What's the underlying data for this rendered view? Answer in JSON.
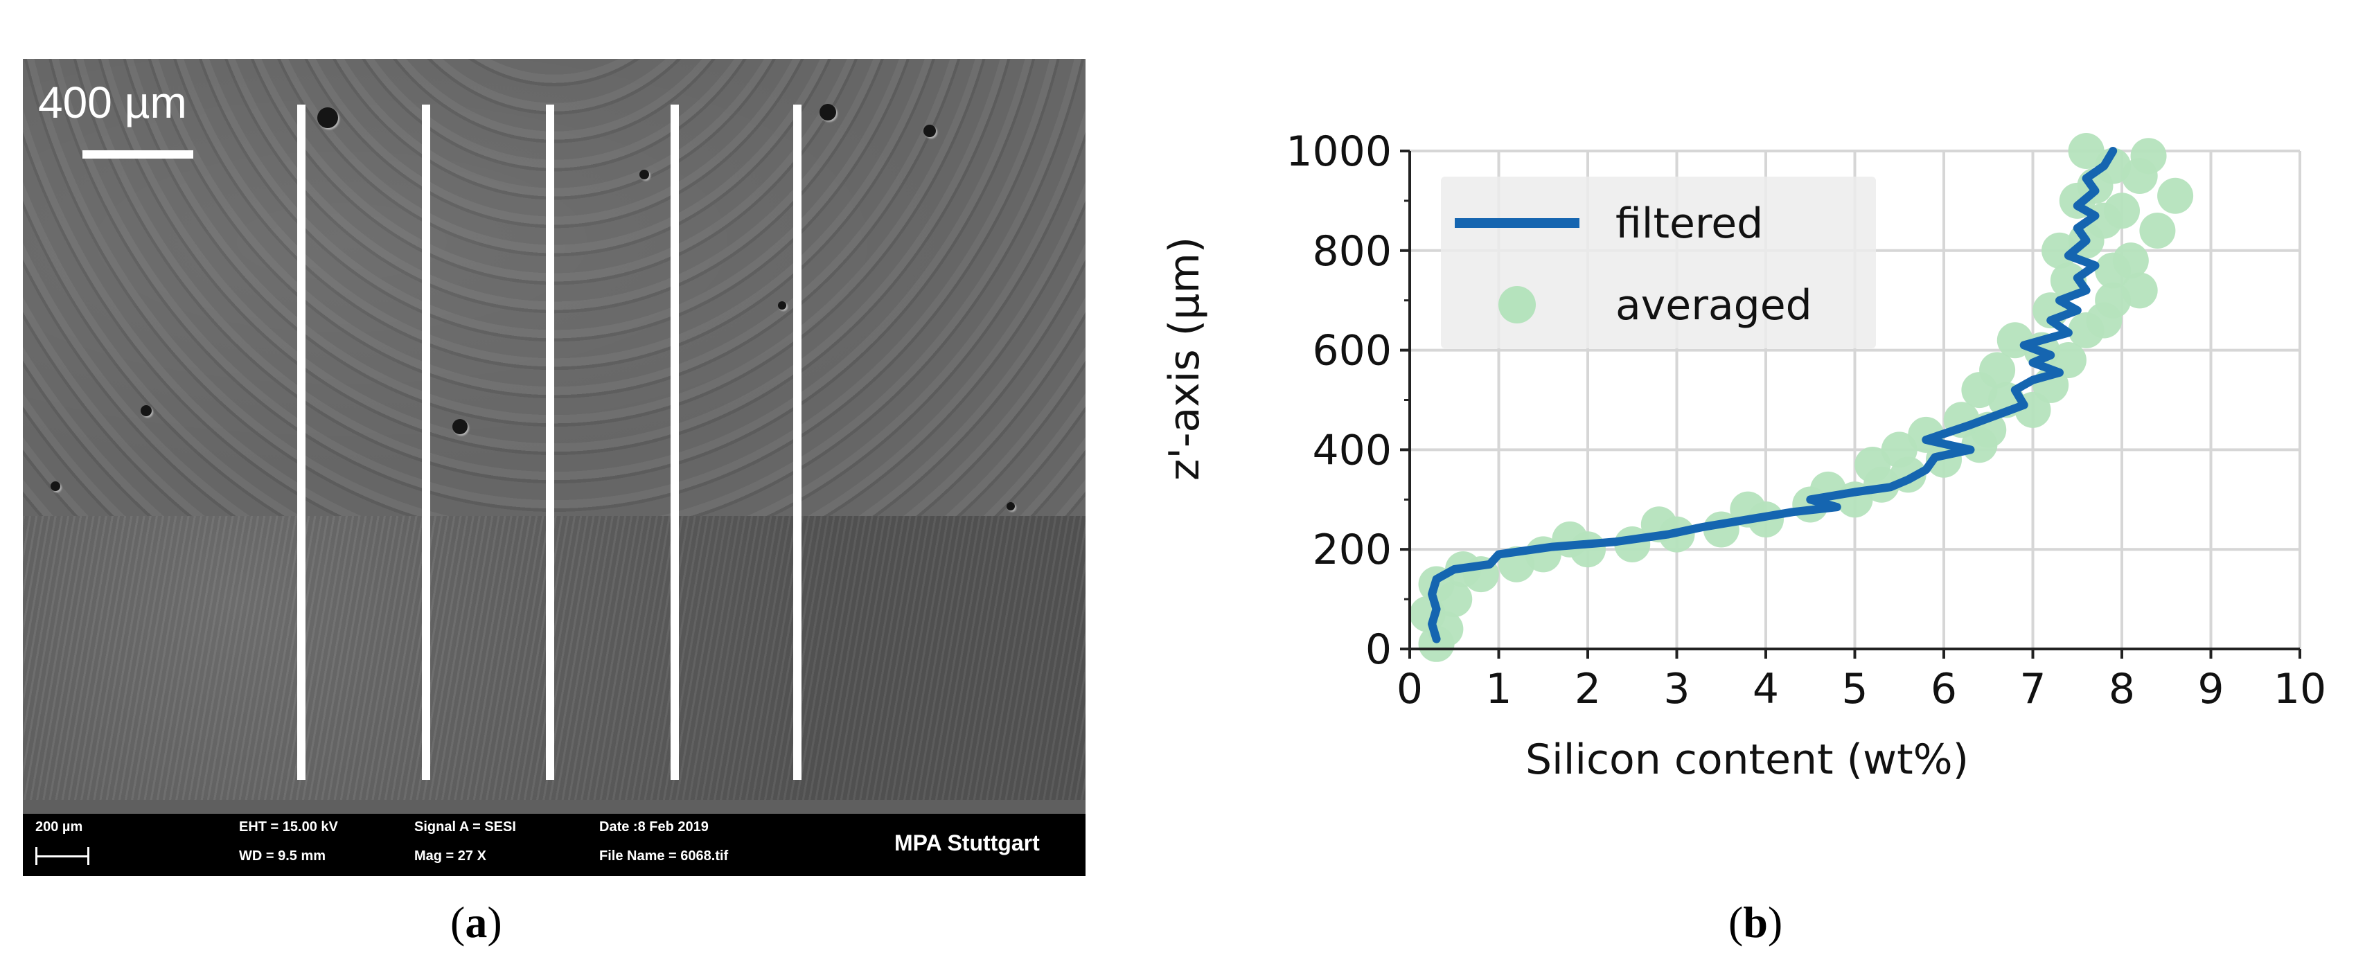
{
  "figure": {
    "panel_a": {
      "label": "a",
      "scale_overlay": "400 µm",
      "databar": {
        "scale": "200 µm",
        "eht": "EHT = 15.00 kV",
        "wd": "WD = 9.5 mm",
        "signal": "Signal A = SESI",
        "mag": "Mag = 27 X",
        "date": "Date :8 Feb 2019",
        "file": "File Name = 6068.tif",
        "brand": "MPA Stuttgart"
      }
    },
    "panel_b": {
      "label": "b"
    }
  },
  "chart_data": {
    "type": "line",
    "xlabel": "Silicon content (wt%)",
    "ylabel": "z'-axis (µm)",
    "xlim": [
      0,
      10
    ],
    "ylim": [
      0,
      1000
    ],
    "xticks": [
      "0",
      "1",
      "2",
      "3",
      "4",
      "5",
      "6",
      "7",
      "8",
      "9",
      "10"
    ],
    "yticks": [
      "0",
      "200",
      "400",
      "600",
      "800",
      "1000"
    ],
    "grid": true,
    "legend_position": "top-left",
    "colors": {
      "filtered": "#1565b0",
      "averaged": "#b5e3bd"
    },
    "series": [
      {
        "name": "filtered",
        "kind": "line",
        "points": [
          [
            0.3,
            20
          ],
          [
            0.25,
            50
          ],
          [
            0.3,
            80
          ],
          [
            0.25,
            110
          ],
          [
            0.3,
            140
          ],
          [
            0.5,
            160
          ],
          [
            0.9,
            170
          ],
          [
            1.0,
            190
          ],
          [
            1.6,
            205
          ],
          [
            2.3,
            215
          ],
          [
            2.9,
            230
          ],
          [
            3.3,
            245
          ],
          [
            3.8,
            260
          ],
          [
            4.3,
            275
          ],
          [
            4.8,
            285
          ],
          [
            4.5,
            300
          ],
          [
            5.0,
            315
          ],
          [
            5.4,
            325
          ],
          [
            5.6,
            340
          ],
          [
            5.8,
            360
          ],
          [
            5.9,
            385
          ],
          [
            6.3,
            400
          ],
          [
            5.8,
            420
          ],
          [
            6.3,
            450
          ],
          [
            6.6,
            470
          ],
          [
            6.9,
            490
          ],
          [
            6.8,
            520
          ],
          [
            7.0,
            540
          ],
          [
            7.3,
            555
          ],
          [
            7.0,
            575
          ],
          [
            7.2,
            590
          ],
          [
            6.9,
            610
          ],
          [
            7.4,
            635
          ],
          [
            7.2,
            660
          ],
          [
            7.5,
            680
          ],
          [
            7.3,
            700
          ],
          [
            7.6,
            720
          ],
          [
            7.5,
            745
          ],
          [
            7.7,
            770
          ],
          [
            7.4,
            790
          ],
          [
            7.6,
            820
          ],
          [
            7.5,
            845
          ],
          [
            7.7,
            870
          ],
          [
            7.5,
            890
          ],
          [
            7.7,
            920
          ],
          [
            7.6,
            945
          ],
          [
            7.8,
            970
          ],
          [
            7.9,
            1000
          ]
        ]
      },
      {
        "name": "averaged",
        "kind": "scatter",
        "points": [
          [
            0.3,
            10
          ],
          [
            0.4,
            40
          ],
          [
            0.2,
            70
          ],
          [
            0.5,
            100
          ],
          [
            0.3,
            130
          ],
          [
            0.8,
            150
          ],
          [
            1.2,
            170
          ],
          [
            0.6,
            160
          ],
          [
            1.5,
            190
          ],
          [
            2.0,
            200
          ],
          [
            2.5,
            210
          ],
          [
            1.8,
            220
          ],
          [
            3.0,
            230
          ],
          [
            2.8,
            250
          ],
          [
            3.5,
            240
          ],
          [
            4.0,
            260
          ],
          [
            3.8,
            280
          ],
          [
            4.5,
            290
          ],
          [
            5.0,
            300
          ],
          [
            4.7,
            320
          ],
          [
            5.3,
            330
          ],
          [
            5.6,
            350
          ],
          [
            5.2,
            370
          ],
          [
            6.0,
            380
          ],
          [
            5.5,
            400
          ],
          [
            6.4,
            410
          ],
          [
            5.8,
            430
          ],
          [
            6.5,
            440
          ],
          [
            6.2,
            460
          ],
          [
            7.0,
            480
          ],
          [
            6.7,
            500
          ],
          [
            6.4,
            520
          ],
          [
            7.2,
            530
          ],
          [
            6.6,
            560
          ],
          [
            7.4,
            580
          ],
          [
            7.1,
            600
          ],
          [
            6.8,
            620
          ],
          [
            7.6,
            640
          ],
          [
            7.8,
            660
          ],
          [
            7.2,
            680
          ],
          [
            7.9,
            700
          ],
          [
            8.2,
            720
          ],
          [
            7.4,
            740
          ],
          [
            7.9,
            760
          ],
          [
            8.1,
            780
          ],
          [
            7.3,
            800
          ],
          [
            7.6,
            820
          ],
          [
            8.4,
            840
          ],
          [
            7.8,
            860
          ],
          [
            8.0,
            880
          ],
          [
            7.5,
            900
          ],
          [
            8.6,
            910
          ],
          [
            7.7,
            930
          ],
          [
            8.2,
            950
          ],
          [
            7.9,
            970
          ],
          [
            8.3,
            990
          ],
          [
            7.6,
            1000
          ]
        ]
      }
    ]
  }
}
